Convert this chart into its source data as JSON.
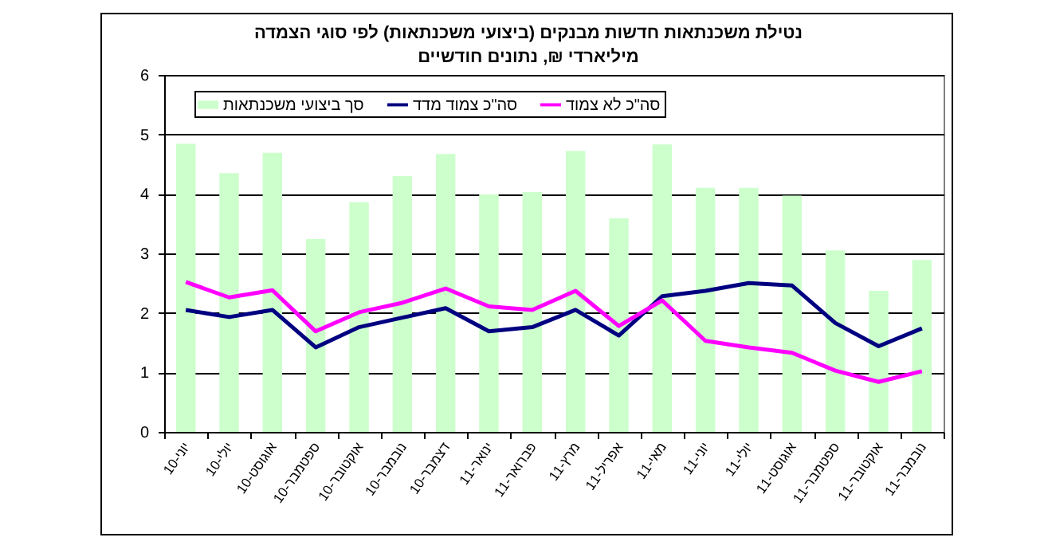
{
  "chart_data": {
    "type": "bar",
    "title": "נטילת משכנתאות חדשות מבנקים (ביצועי משכנתאות) לפי סוגי הצמדה",
    "subtitle": "מיליארדי ₪, נתונים חודשיים",
    "categories": [
      "יוני-10",
      "יולי-10",
      "אוגוסט-10",
      "ספטמבר-10",
      "אוקטובר-10",
      "נובמבר-10",
      "דצמבר-10",
      "ינואר-11",
      "פברואר-11",
      "מרץ-11",
      "אפריל-11",
      "מאי-11",
      "יוני-11",
      "יולי-11",
      "אוגוסט-11",
      "ספטמבר-11",
      "אוקטובר-11",
      "נובמבר-11"
    ],
    "series": [
      {
        "name": "סך ביצועי משכנתאות",
        "color": "#ccffcc",
        "values": [
          4.84,
          4.35,
          4.69,
          3.24,
          3.86,
          4.3,
          4.67,
          3.99,
          4.03,
          4.72,
          3.59,
          4.83,
          4.1,
          4.1,
          3.97,
          3.05,
          2.37,
          2.89
        ]
      },
      {
        "name": "סה\"כ צמוד מדד",
        "type": "line",
        "color": "#000080",
        "values": [
          2.05,
          1.93,
          2.05,
          1.42,
          1.76,
          1.92,
          2.08,
          1.69,
          1.76,
          2.05,
          1.62,
          2.28,
          2.37,
          2.5,
          2.46,
          1.83,
          1.44,
          1.74
        ]
      },
      {
        "name": "סה\"כ לא צמוד",
        "type": "line",
        "color": "#ff00ff",
        "values": [
          2.52,
          2.26,
          2.38,
          1.69,
          2.01,
          2.17,
          2.41,
          2.11,
          2.05,
          2.37,
          1.78,
          2.21,
          1.53,
          1.42,
          1.33,
          1.03,
          0.84,
          1.02
        ]
      }
    ],
    "ylim": [
      0,
      6
    ],
    "yticks": [
      0,
      1,
      2,
      3,
      4,
      5,
      6
    ],
    "grid": "y",
    "legend": "top left"
  }
}
